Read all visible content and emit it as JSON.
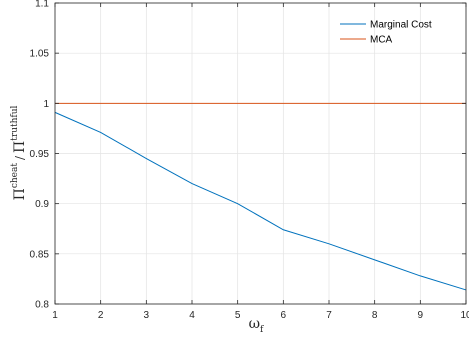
{
  "chart_data": {
    "type": "line",
    "title": "",
    "xlabel": {
      "base": "ω",
      "sub": "f"
    },
    "ylabel": {
      "num_base": "Π",
      "num_sup": "cheat",
      "sep": "/",
      "den_base": "Π",
      "den_sup": "truthful"
    },
    "xlim": [
      1,
      10
    ],
    "ylim": [
      0.8,
      1.1
    ],
    "xticks": [
      1,
      2,
      3,
      4,
      5,
      6,
      7,
      8,
      9,
      10
    ],
    "yticks": [
      0.8,
      0.85,
      0.9,
      0.95,
      1,
      1.05,
      1.1
    ],
    "ytick_labels": [
      "0.8",
      "0.85",
      "0.9",
      "0.95",
      "1",
      "1.05",
      "1.1"
    ],
    "grid": true,
    "legend_position": "top-right",
    "series": [
      {
        "name": "Marginal Cost",
        "color": "#0072BD",
        "x": [
          1,
          2,
          3,
          4,
          5,
          6,
          7,
          8,
          9,
          10
        ],
        "y": [
          0.991,
          0.971,
          0.945,
          0.92,
          0.9,
          0.874,
          0.86,
          0.844,
          0.828,
          0.814
        ]
      },
      {
        "name": "MCA",
        "color": "#D95319",
        "x": [
          1,
          2,
          3,
          4,
          5,
          6,
          7,
          8,
          9,
          10
        ],
        "y": [
          1,
          1,
          1,
          1,
          1,
          1,
          1,
          1,
          1,
          1
        ]
      }
    ]
  }
}
